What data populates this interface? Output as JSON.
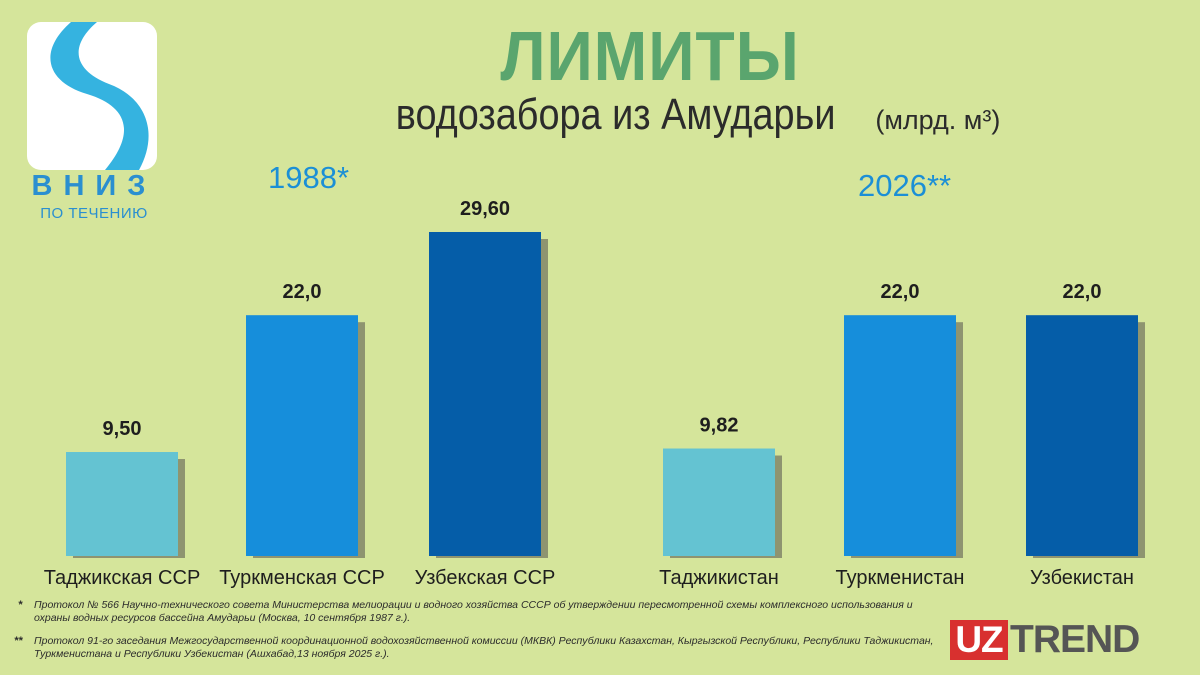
{
  "logo": {
    "brand": "ВНИЗ",
    "sub": "ПО ТЕЧЕНИЮ",
    "icon": "river-icon"
  },
  "title": "ЛИМИТЫ",
  "subtitle": "водозабора из Амударьи",
  "unit": "(млрд. м³)",
  "groups": [
    {
      "year": "1988*"
    },
    {
      "year": "2026**"
    }
  ],
  "colors": {
    "light": "#64c3d2",
    "medium": "#168edb",
    "dark": "#055da8",
    "shadow": "#8e9470",
    "background": "#d5e59b",
    "title": "#5aa56e",
    "year": "#1b8fd6"
  },
  "chart_data": {
    "type": "bar",
    "title": "ЛИМИТЫ водозабора из Амударьи (млрд. м³)",
    "categories": [
      "Таджикская ССР",
      "Туркменская ССР",
      "Узбекская ССР",
      "Таджикистан",
      "Туркменистан",
      "Узбекистан"
    ],
    "values": [
      9.5,
      22.0,
      29.6,
      9.82,
      22.0,
      22.0
    ],
    "value_labels": [
      "9,50",
      "22,0",
      "29,60",
      "9,82",
      "22,0",
      "22,0"
    ],
    "group_of": [
      "1988*",
      "1988*",
      "1988*",
      "2026**",
      "2026**",
      "2026**"
    ],
    "color_keys": [
      "light",
      "medium",
      "dark",
      "light",
      "medium",
      "dark"
    ],
    "ylim": [
      0,
      30
    ],
    "grid": false,
    "legend": "none",
    "xlabel": "",
    "ylabel": ""
  },
  "footnotes": [
    {
      "mark": "*",
      "text": "Протокол № 566 Научно-технического совета Министерства мелиорации и водного хозяйства СССР об утверждении пересмотренной схемы комплексного использования и охраны водных ресурсов бассейна Амударьи (Москва, 10 сентября 1987 г.)."
    },
    {
      "mark": "**",
      "text": "Протокол 91-го заседания Межгосударственной координационной водохозяйственной комиссии (МКВК) Республики Казахстан, Кыргызской Республики, Республики Таджикистан, Туркменистана и Республики Узбекистан (Ашхабад,13 ноября 2025 г.)."
    }
  ],
  "publisher": {
    "uz": "UZ",
    "trend": "TREND"
  }
}
